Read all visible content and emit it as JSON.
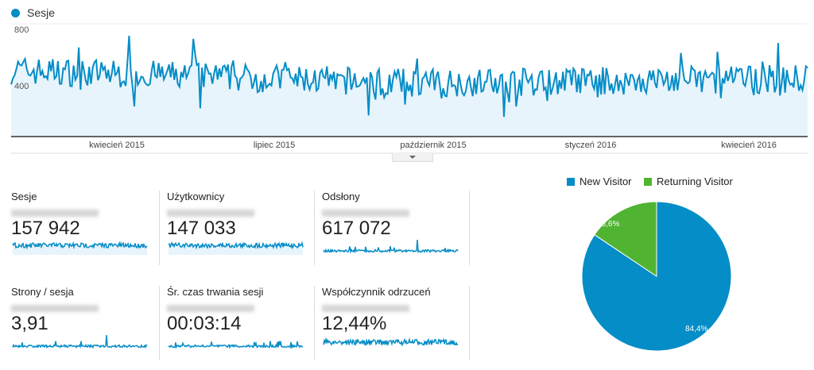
{
  "chart": {
    "legend": "Sesje",
    "y_ticks": [
      "800",
      "400"
    ],
    "x_ticks": [
      "kwiecień 2015",
      "lipiec 2015",
      "październik 2015",
      "styczeń 2016",
      "kwiecień 2016"
    ],
    "color": "#058dc7"
  },
  "chart_data": [
    {
      "type": "line",
      "series": [
        {
          "name": "Sesje"
        }
      ],
      "ylim": [
        0,
        800
      ],
      "y_ticks": [
        400,
        800
      ],
      "x_ticks": [
        "kwiecień 2015",
        "lipiec 2015",
        "październik 2015",
        "styczeń 2016",
        "kwiecień 2016"
      ],
      "grid": true,
      "legend": "top-left"
    },
    {
      "type": "pie",
      "categories": [
        "New Visitor",
        "Returning Visitor"
      ],
      "values": [
        84.4,
        15.6
      ],
      "labels": [
        "84,4%",
        "15,6%"
      ],
      "colors": [
        "#058dc7",
        "#50b432"
      ],
      "legend": "top"
    }
  ],
  "metrics": [
    {
      "title": "Sesje",
      "value": "157 942"
    },
    {
      "title": "Użytkownicy",
      "value": "147 033"
    },
    {
      "title": "Odsłony",
      "value": "617 072"
    },
    {
      "title": "Strony / sesja",
      "value": "3,91"
    },
    {
      "title": "Śr. czas trwania sesji",
      "value": "00:03:14"
    },
    {
      "title": "Współczynnik odrzuceń",
      "value": "12,44%"
    }
  ],
  "pie": {
    "legend": [
      "New Visitor",
      "Returning Visitor"
    ],
    "labels": [
      "84,4%",
      "15,6%"
    ]
  }
}
